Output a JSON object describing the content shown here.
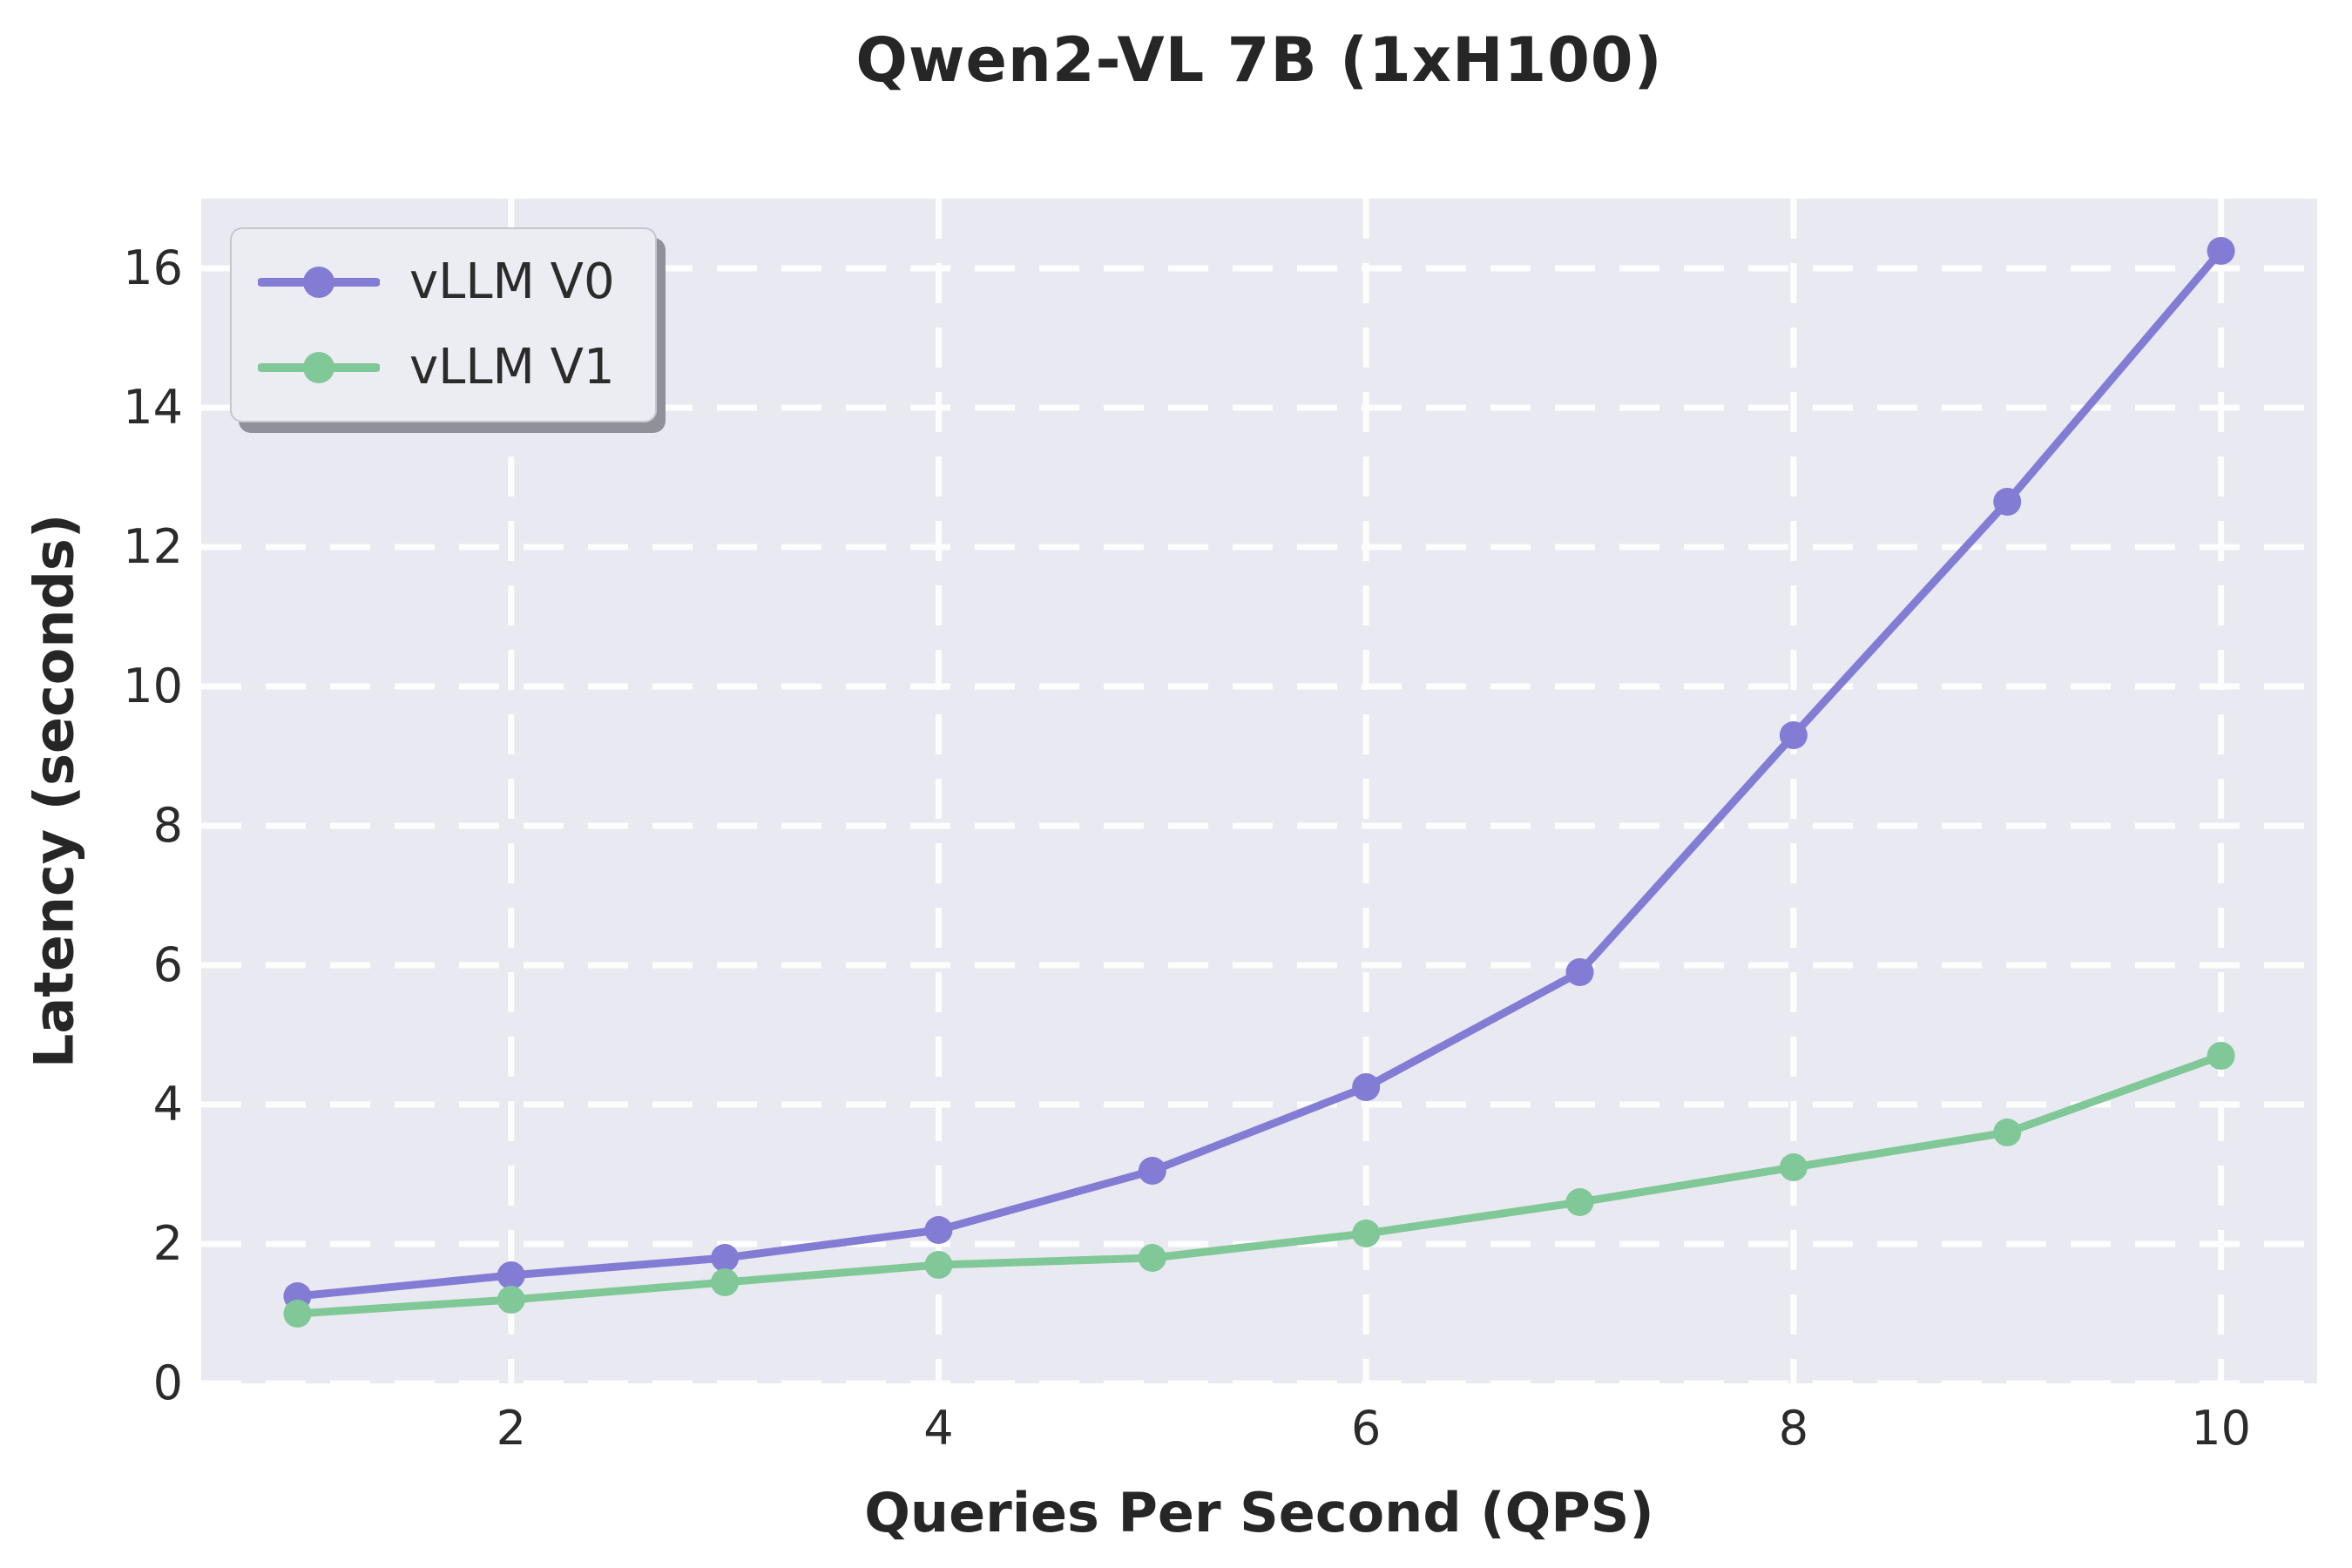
{
  "title": "Qwen2-VL 7B (1xH100)",
  "x_axis_label": "Queries Per Second (QPS)",
  "y_axis_label": "Latency (seconds)",
  "legend": {
    "position": "upper left",
    "items": [
      {
        "label": "vLLM V0",
        "color": "#837CD4"
      },
      {
        "label": "vLLM V1",
        "color": "#80C898"
      }
    ]
  },
  "colors": {
    "plot_background": "#E9E9F1",
    "page_background": "#ffffff",
    "gridline": "#ffffff",
    "text": "#262626",
    "series_v0": "#837CD4",
    "series_v1": "#80C898"
  },
  "chart_data": {
    "type": "line",
    "title": "Qwen2-VL 7B (1xH100)",
    "xlabel": "Queries Per Second (QPS)",
    "ylabel": "Latency (seconds)",
    "x": [
      1,
      2,
      3,
      4,
      5,
      6,
      7,
      8,
      9,
      10
    ],
    "series": [
      {
        "name": "vLLM V0",
        "color": "#837CD4",
        "values": [
          1.25,
          1.55,
          1.8,
          2.2,
          3.05,
          4.25,
          5.9,
          9.3,
          12.65,
          16.25
        ]
      },
      {
        "name": "vLLM V1",
        "color": "#80C898",
        "values": [
          1.0,
          1.2,
          1.45,
          1.7,
          1.8,
          2.15,
          2.6,
          3.1,
          3.6,
          4.7
        ]
      }
    ],
    "xlim": [
      0.55,
      10.45
    ],
    "ylim": [
      0,
      17
    ],
    "xticks": [
      2,
      4,
      6,
      8,
      10
    ],
    "yticks": [
      0,
      2,
      4,
      6,
      8,
      10,
      12,
      14,
      16
    ],
    "grid": true,
    "grid_style": "dashed-white",
    "legend_position": "upper left",
    "marker": "circle",
    "marker_radius": 16,
    "line_width": 9
  }
}
